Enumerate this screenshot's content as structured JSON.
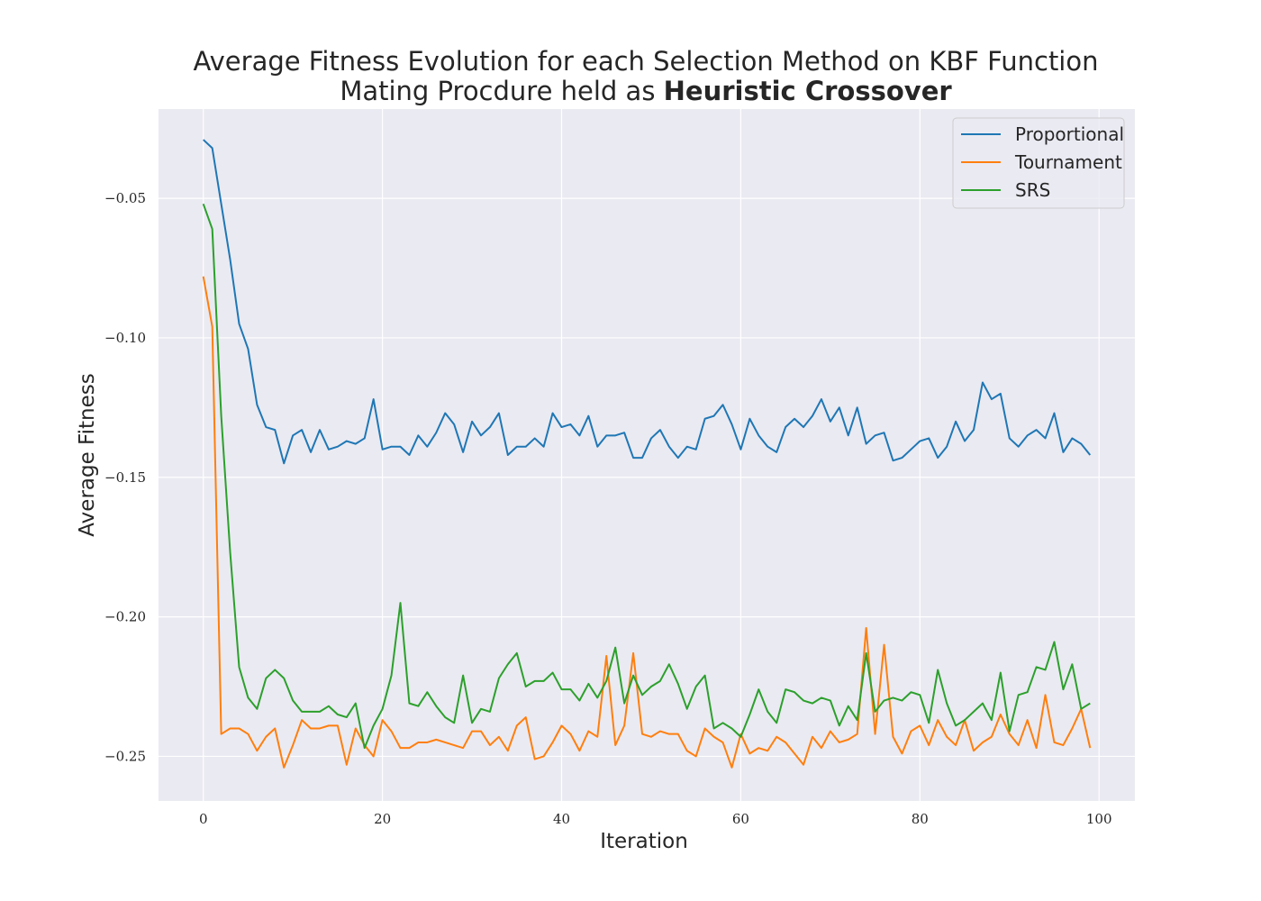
{
  "chart_data": {
    "type": "line",
    "title": "Average Fitness Evolution for each Selection Method on KBF Function",
    "subtitle_prefix": "Mating Procdure held as ",
    "subtitle_bold": "Heuristic Crossover",
    "xlabel": "Iteration",
    "ylabel": "Average Fitness",
    "xlim": [
      -5,
      104
    ],
    "ylim": [
      -0.266,
      -0.018
    ],
    "xticks": [
      0,
      20,
      40,
      60,
      80,
      100
    ],
    "xtick_labels": [
      "0",
      "20",
      "40",
      "60",
      "80",
      "100"
    ],
    "yticks": [
      -0.05,
      -0.1,
      -0.15,
      -0.2,
      -0.25
    ],
    "ytick_labels": [
      "−0.05",
      "−0.10",
      "−0.15",
      "−0.20",
      "−0.25"
    ],
    "grid": true,
    "legend_position": "top-right",
    "series": [
      {
        "name": "Proportional",
        "color": "#1f77b4",
        "values": [
          -0.029,
          -0.032,
          -0.052,
          -0.072,
          -0.095,
          -0.104,
          -0.124,
          -0.132,
          -0.133,
          -0.145,
          -0.135,
          -0.133,
          -0.141,
          -0.133,
          -0.14,
          -0.139,
          -0.137,
          -0.138,
          -0.136,
          -0.122,
          -0.14,
          -0.139,
          -0.139,
          -0.142,
          -0.135,
          -0.139,
          -0.134,
          -0.127,
          -0.131,
          -0.141,
          -0.13,
          -0.135,
          -0.132,
          -0.127,
          -0.142,
          -0.139,
          -0.139,
          -0.136,
          -0.139,
          -0.127,
          -0.132,
          -0.131,
          -0.135,
          -0.128,
          -0.139,
          -0.135,
          -0.135,
          -0.134,
          -0.143,
          -0.143,
          -0.136,
          -0.133,
          -0.139,
          -0.143,
          -0.139,
          -0.14,
          -0.129,
          -0.128,
          -0.124,
          -0.131,
          -0.14,
          -0.129,
          -0.135,
          -0.139,
          -0.141,
          -0.132,
          -0.129,
          -0.132,
          -0.128,
          -0.122,
          -0.13,
          -0.125,
          -0.135,
          -0.125,
          -0.138,
          -0.135,
          -0.134,
          -0.144,
          -0.143,
          -0.14,
          -0.137,
          -0.136,
          -0.143,
          -0.139,
          -0.13,
          -0.137,
          -0.133,
          -0.116,
          -0.122,
          -0.12,
          -0.136,
          -0.139,
          -0.135,
          -0.133,
          -0.136,
          -0.127,
          -0.141,
          -0.136,
          -0.138,
          -0.142
        ]
      },
      {
        "name": "Tournament",
        "color": "#ff7f0e",
        "values": [
          -0.078,
          -0.096,
          -0.242,
          -0.24,
          -0.24,
          -0.242,
          -0.248,
          -0.243,
          -0.24,
          -0.254,
          -0.246,
          -0.237,
          -0.24,
          -0.24,
          -0.239,
          -0.239,
          -0.253,
          -0.24,
          -0.246,
          -0.25,
          -0.237,
          -0.241,
          -0.247,
          -0.247,
          -0.245,
          -0.245,
          -0.244,
          -0.245,
          -0.246,
          -0.247,
          -0.241,
          -0.241,
          -0.246,
          -0.243,
          -0.248,
          -0.239,
          -0.236,
          -0.251,
          -0.25,
          -0.245,
          -0.239,
          -0.242,
          -0.248,
          -0.241,
          -0.243,
          -0.214,
          -0.246,
          -0.239,
          -0.213,
          -0.242,
          -0.243,
          -0.241,
          -0.242,
          -0.242,
          -0.248,
          -0.25,
          -0.24,
          -0.243,
          -0.245,
          -0.254,
          -0.242,
          -0.249,
          -0.247,
          -0.248,
          -0.243,
          -0.245,
          -0.249,
          -0.253,
          -0.243,
          -0.247,
          -0.241,
          -0.245,
          -0.244,
          -0.242,
          -0.204,
          -0.242,
          -0.21,
          -0.243,
          -0.249,
          -0.241,
          -0.239,
          -0.246,
          -0.237,
          -0.243,
          -0.246,
          -0.237,
          -0.248,
          -0.245,
          -0.243,
          -0.235,
          -0.242,
          -0.246,
          -0.237,
          -0.247,
          -0.228,
          -0.245,
          -0.246,
          -0.24,
          -0.233,
          -0.247
        ]
      },
      {
        "name": "SRS",
        "color": "#2ca02c",
        "values": [
          -0.052,
          -0.061,
          -0.128,
          -0.177,
          -0.218,
          -0.229,
          -0.233,
          -0.222,
          -0.219,
          -0.222,
          -0.23,
          -0.234,
          -0.234,
          -0.234,
          -0.232,
          -0.235,
          -0.236,
          -0.231,
          -0.247,
          -0.239,
          -0.233,
          -0.221,
          -0.195,
          -0.231,
          -0.232,
          -0.227,
          -0.232,
          -0.236,
          -0.238,
          -0.221,
          -0.238,
          -0.233,
          -0.234,
          -0.222,
          -0.217,
          -0.213,
          -0.225,
          -0.223,
          -0.223,
          -0.22,
          -0.226,
          -0.226,
          -0.23,
          -0.224,
          -0.229,
          -0.223,
          -0.211,
          -0.231,
          -0.221,
          -0.228,
          -0.225,
          -0.223,
          -0.217,
          -0.224,
          -0.233,
          -0.225,
          -0.221,
          -0.24,
          -0.238,
          -0.24,
          -0.243,
          -0.235,
          -0.226,
          -0.234,
          -0.238,
          -0.226,
          -0.227,
          -0.23,
          -0.231,
          -0.229,
          -0.23,
          -0.239,
          -0.232,
          -0.237,
          -0.213,
          -0.234,
          -0.23,
          -0.229,
          -0.23,
          -0.227,
          -0.228,
          -0.238,
          -0.219,
          -0.231,
          -0.239,
          -0.237,
          -0.234,
          -0.231,
          -0.237,
          -0.22,
          -0.241,
          -0.228,
          -0.227,
          -0.218,
          -0.219,
          -0.209,
          -0.226,
          -0.217,
          -0.233,
          -0.231
        ]
      }
    ]
  }
}
